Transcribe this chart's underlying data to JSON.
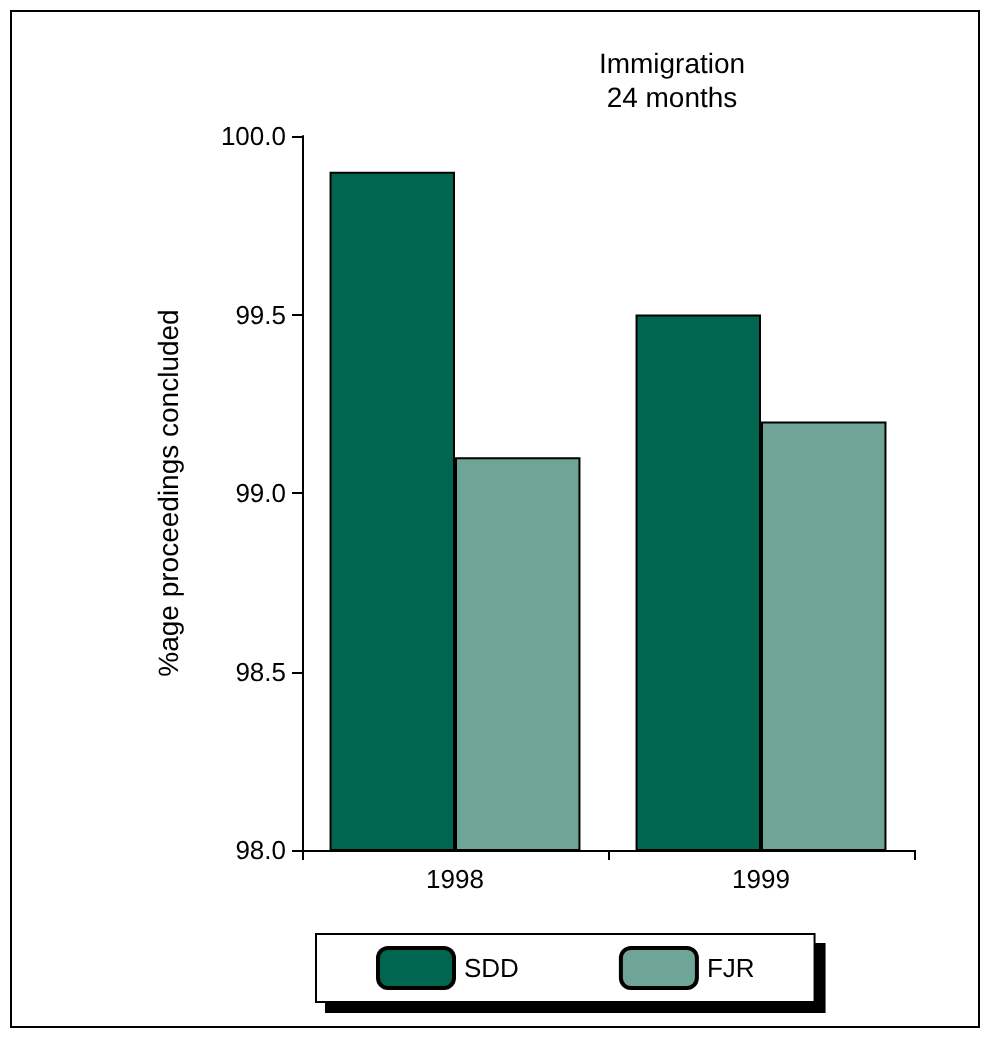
{
  "chart_data": {
    "type": "bar",
    "title": "Immigration\n24 months",
    "ylabel": "%age proceedings concluded",
    "categories": [
      "1998",
      "1999"
    ],
    "series": [
      {
        "name": "SDD",
        "color": "#00664f",
        "values": [
          99.9,
          99.5
        ]
      },
      {
        "name": "FJR",
        "color": "#6fa596",
        "values": [
          99.1,
          99.2
        ]
      }
    ],
    "ylim": [
      98,
      100
    ],
    "yticks": [
      {
        "value": 98,
        "label": "98.0"
      },
      {
        "value": 98.5,
        "label": "98.5"
      },
      {
        "value": 99,
        "label": "99.0"
      },
      {
        "value": 99.5,
        "label": "99.5"
      },
      {
        "value": 100,
        "label": "100.0"
      }
    ],
    "grid": false,
    "legend": "bottom"
  }
}
